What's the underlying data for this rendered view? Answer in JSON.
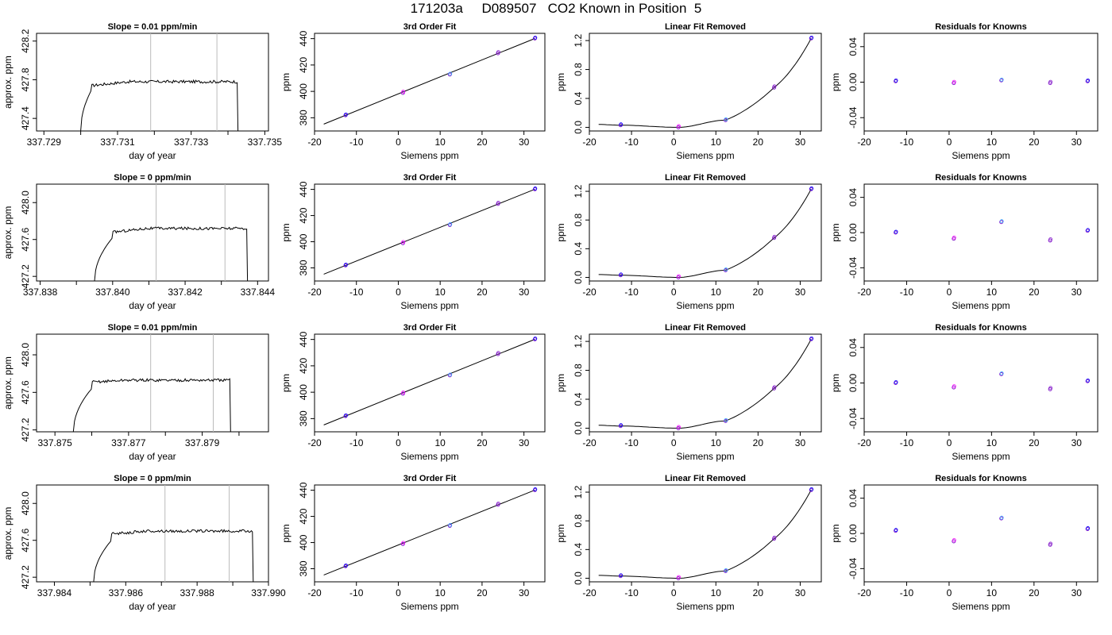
{
  "page_title": "171203a     D089507   CO2 Known in Position  5",
  "colors": {
    "trace": "#000000",
    "blue": "#0000ff",
    "magenta": "#ff00ff",
    "cyan": "#33aaff",
    "purple": "#8822cc",
    "vline": "#bbbbbb"
  },
  "chart_data": [
    {
      "type": "line",
      "title": "Slope =  0.01  ppm/min",
      "xlabel": "day of year",
      "ylabel": "approx. ppm",
      "xlim": [
        337.7288,
        337.7351
      ],
      "ylim": [
        427.27,
        428.28
      ],
      "xticks": [
        "337.729",
        "337.731",
        "337.733",
        "337.735"
      ],
      "yticks": [
        "427.4",
        "427.8",
        "428.2"
      ],
      "vlines": [
        337.7319,
        337.7337
      ],
      "start": 337.73,
      "rise_end": 337.7303,
      "end": 337.73425,
      "base": 427.74,
      "sat": 427.78,
      "rise_level": 427.7
    },
    {
      "type": "scatter",
      "title": "3rd Order Fit",
      "xlabel": "Siemens ppm",
      "ylabel": "ppm",
      "xlim": [
        -20,
        35
      ],
      "ylim": [
        370,
        444
      ],
      "xticks": [
        "-20",
        "-10",
        "0",
        "10",
        "20",
        "30"
      ],
      "yticks": [
        "380",
        "400",
        "420",
        "440"
      ],
      "points": [
        [
          -12.6,
          381.9
        ],
        [
          1.1,
          398.9
        ],
        [
          12.3,
          412.8
        ],
        [
          23.8,
          428.9
        ],
        [
          32.6,
          440.1
        ]
      ],
      "fit": "line",
      "line_x": [
        -17.8,
        32.6
      ],
      "line_y": [
        375.2,
        440.1
      ]
    },
    {
      "type": "scatter",
      "title": "Linear Fit Removed",
      "xlabel": "Siemens ppm",
      "ylabel": "ppm",
      "xlim": [
        -20,
        35
      ],
      "ylim": [
        -0.05,
        1.3
      ],
      "xticks": [
        "-20",
        "-10",
        "0",
        "10",
        "20",
        "30"
      ],
      "yticks": [
        "0.0",
        "0.4",
        "0.8",
        "1.2"
      ],
      "points": [
        [
          -12.6,
          0.03
        ],
        [
          1.1,
          0.0
        ],
        [
          12.3,
          0.1
        ],
        [
          23.8,
          0.55
        ],
        [
          32.6,
          1.23
        ]
      ],
      "fit": "curve"
    },
    {
      "type": "scatter",
      "title": "Residuals for Knowns",
      "xlabel": "Siemens ppm",
      "ylabel": "ppm",
      "xlim": [
        -20,
        35
      ],
      "ylim": [
        -0.055,
        0.055
      ],
      "xticks": [
        "-20",
        "-10",
        "0",
        "10",
        "20",
        "30"
      ],
      "yticks": [
        "-0.04",
        "0.00",
        "0.04"
      ],
      "points": [
        [
          -12.6,
          0.001
        ],
        [
          1.1,
          -0.001
        ],
        [
          12.3,
          0.002
        ],
        [
          23.8,
          -0.001
        ],
        [
          32.6,
          0.001
        ]
      ]
    },
    {
      "type": "line",
      "title": "Slope =  0  ppm/min",
      "xlabel": "day of year",
      "ylabel": "approx. ppm",
      "xlim": [
        337.8379,
        337.8443
      ],
      "ylim": [
        427.15,
        428.2
      ],
      "xticks": [
        "337.838",
        "337.840",
        "337.842",
        "337.844"
      ],
      "yticks": [
        "427.2",
        "427.6",
        "428.0"
      ],
      "vlines": [
        337.8412,
        337.8431
      ],
      "start": 337.8395,
      "rise_end": 337.84,
      "end": 337.8437,
      "base": 427.68,
      "sat": 427.72,
      "rise_level": 427.62
    },
    {
      "type": "scatter",
      "title": "3rd Order Fit",
      "xlabel": "Siemens ppm",
      "ylabel": "ppm",
      "xlim": [
        -20,
        35
      ],
      "ylim": [
        370,
        444
      ],
      "xticks": [
        "-20",
        "-10",
        "0",
        "10",
        "20",
        "30"
      ],
      "yticks": [
        "380",
        "400",
        "420",
        "440"
      ],
      "points": [
        [
          -12.6,
          381.9
        ],
        [
          1.1,
          398.9
        ],
        [
          12.3,
          412.8
        ],
        [
          23.8,
          428.9
        ],
        [
          32.6,
          440.1
        ]
      ],
      "fit": "line",
      "line_x": [
        -17.8,
        32.6
      ],
      "line_y": [
        375.2,
        440.1
      ]
    },
    {
      "type": "scatter",
      "title": "Linear Fit Removed",
      "xlabel": "Siemens ppm",
      "ylabel": "ppm",
      "xlim": [
        -20,
        35
      ],
      "ylim": [
        -0.05,
        1.3
      ],
      "xticks": [
        "-20",
        "-10",
        "0",
        "10",
        "20",
        "30"
      ],
      "yticks": [
        "0.0",
        "0.4",
        "0.8",
        "1.2"
      ],
      "points": [
        [
          -12.6,
          0.03
        ],
        [
          1.1,
          0.0
        ],
        [
          12.3,
          0.1
        ],
        [
          23.8,
          0.55
        ],
        [
          32.6,
          1.23
        ]
      ],
      "fit": "curve"
    },
    {
      "type": "scatter",
      "title": "Residuals for Knowns",
      "xlabel": "Siemens ppm",
      "ylabel": "ppm",
      "xlim": [
        -20,
        35
      ],
      "ylim": [
        -0.055,
        0.055
      ],
      "xticks": [
        "-20",
        "-10",
        "0",
        "10",
        "20",
        "30"
      ],
      "yticks": [
        "-0.04",
        "0.00",
        "0.04"
      ],
      "points": [
        [
          -12.6,
          0.0
        ],
        [
          1.1,
          -0.007
        ],
        [
          12.3,
          0.012
        ],
        [
          23.8,
          -0.009
        ],
        [
          32.6,
          0.002
        ]
      ]
    },
    {
      "type": "line",
      "title": "Slope =  0.01  ppm/min",
      "xlabel": "day of year",
      "ylabel": "approx. ppm",
      "xlim": [
        337.8745,
        337.8808
      ],
      "ylim": [
        427.18,
        428.22
      ],
      "xticks": [
        "337.875",
        "337.877",
        "337.879"
      ],
      "yticks": [
        "427.2",
        "427.6",
        "428.0"
      ],
      "vlines": [
        337.8776,
        337.8793
      ],
      "start": 337.8755,
      "rise_end": 337.876,
      "end": 337.87975,
      "base": 427.71,
      "sat": 427.73,
      "rise_level": 427.64
    },
    {
      "type": "scatter",
      "title": "3rd Order Fit",
      "xlabel": "Siemens ppm",
      "ylabel": "ppm",
      "xlim": [
        -20,
        35
      ],
      "ylim": [
        370,
        444
      ],
      "xticks": [
        "-20",
        "-10",
        "0",
        "10",
        "20",
        "30"
      ],
      "yticks": [
        "380",
        "400",
        "420",
        "440"
      ],
      "points": [
        [
          -12.6,
          381.9
        ],
        [
          1.1,
          398.9
        ],
        [
          12.3,
          412.8
        ],
        [
          23.8,
          428.9
        ],
        [
          32.6,
          440.1
        ]
      ],
      "fit": "line",
      "line_x": [
        -17.8,
        32.6
      ],
      "line_y": [
        375.2,
        440.1
      ]
    },
    {
      "type": "scatter",
      "title": "Linear Fit Removed",
      "xlabel": "Siemens ppm",
      "ylabel": "ppm",
      "xlim": [
        -20,
        35
      ],
      "ylim": [
        -0.05,
        1.3
      ],
      "xticks": [
        "-20",
        "-10",
        "0",
        "10",
        "20",
        "30"
      ],
      "yticks": [
        "0.0",
        "0.4",
        "0.8",
        "1.2"
      ],
      "points": [
        [
          -12.6,
          0.03
        ],
        [
          1.1,
          0.0
        ],
        [
          12.3,
          0.1
        ],
        [
          23.8,
          0.55
        ],
        [
          32.6,
          1.23
        ]
      ],
      "fit": "curve"
    },
    {
      "type": "scatter",
      "title": "Residuals for Knowns",
      "xlabel": "Siemens ppm",
      "ylabel": "ppm",
      "xlim": [
        -20,
        35
      ],
      "ylim": [
        -0.055,
        0.055
      ],
      "xticks": [
        "-20",
        "-10",
        "0",
        "10",
        "20",
        "30"
      ],
      "yticks": [
        "-0.04",
        "0.00",
        "0.04"
      ],
      "points": [
        [
          -12.6,
          0.0
        ],
        [
          1.1,
          -0.005
        ],
        [
          12.3,
          0.01
        ],
        [
          23.8,
          -0.007
        ],
        [
          32.6,
          0.002
        ]
      ]
    },
    {
      "type": "line",
      "title": "Slope =  0  ppm/min",
      "xlabel": "day of year",
      "ylabel": "approx. ppm",
      "xlim": [
        337.9835,
        337.99
      ],
      "ylim": [
        427.15,
        428.2
      ],
      "xticks": [
        "337.984",
        "337.986",
        "337.988",
        "337.990"
      ],
      "yticks": [
        "427.2",
        "427.6",
        "428.0"
      ],
      "vlines": [
        337.9871,
        337.9889
      ],
      "start": 337.9851,
      "rise_end": 337.9856,
      "end": 337.98955,
      "base": 427.67,
      "sat": 427.7,
      "rise_level": 427.6
    },
    {
      "type": "scatter",
      "title": "3rd Order Fit",
      "xlabel": "Siemens ppm",
      "ylabel": "ppm",
      "xlim": [
        -20,
        35
      ],
      "ylim": [
        370,
        444
      ],
      "xticks": [
        "-20",
        "-10",
        "0",
        "10",
        "20",
        "30"
      ],
      "yticks": [
        "380",
        "400",
        "420",
        "440"
      ],
      "points": [
        [
          -12.6,
          381.9
        ],
        [
          1.1,
          398.9
        ],
        [
          12.3,
          412.8
        ],
        [
          23.8,
          428.9
        ],
        [
          32.6,
          440.1
        ]
      ],
      "fit": "line",
      "line_x": [
        -17.8,
        32.6
      ],
      "line_y": [
        375.2,
        440.1
      ]
    },
    {
      "type": "scatter",
      "title": "Linear Fit Removed",
      "xlabel": "Siemens ppm",
      "ylabel": "ppm",
      "xlim": [
        -20,
        35
      ],
      "ylim": [
        -0.05,
        1.3
      ],
      "xticks": [
        "-20",
        "-10",
        "0",
        "10",
        "20",
        "30"
      ],
      "yticks": [
        "0.0",
        "0.4",
        "0.8",
        "1.2"
      ],
      "points": [
        [
          -12.6,
          0.03
        ],
        [
          1.1,
          0.0
        ],
        [
          12.3,
          0.1
        ],
        [
          23.8,
          0.55
        ],
        [
          32.6,
          1.23
        ]
      ],
      "fit": "curve"
    },
    {
      "type": "scatter",
      "title": "Residuals for Knowns",
      "xlabel": "Siemens ppm",
      "ylabel": "ppm",
      "xlim": [
        -20,
        35
      ],
      "ylim": [
        -0.055,
        0.055
      ],
      "xticks": [
        "-20",
        "-10",
        "0",
        "10",
        "20",
        "30"
      ],
      "yticks": [
        "-0.04",
        "0.00",
        "0.04"
      ],
      "points": [
        [
          -12.6,
          0.003
        ],
        [
          1.1,
          -0.009
        ],
        [
          12.3,
          0.017
        ],
        [
          23.8,
          -0.013
        ],
        [
          32.6,
          0.005
        ]
      ]
    }
  ]
}
